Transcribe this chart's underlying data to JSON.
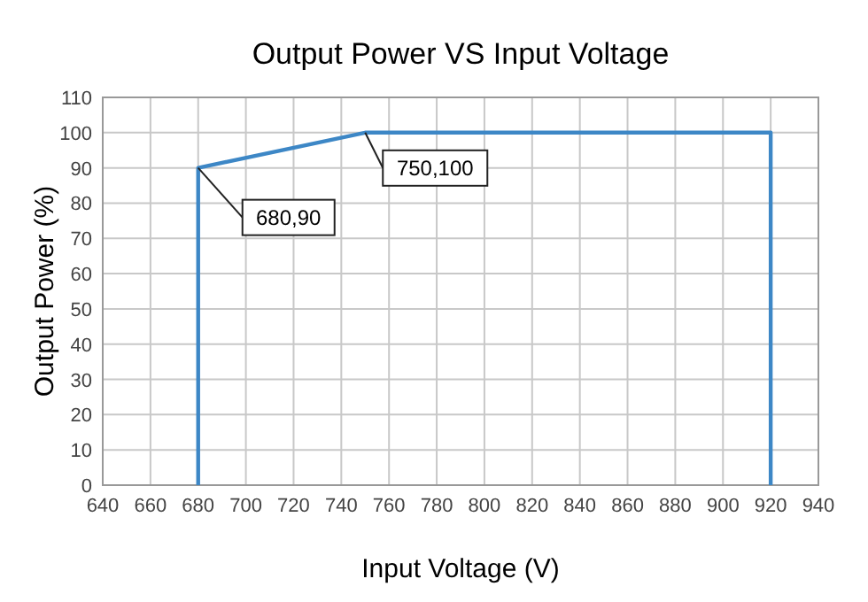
{
  "chart_data": {
    "type": "line",
    "title": "Output Power VS Input Voltage",
    "xlabel": "Input Voltage (V)",
    "ylabel": "Output Power (%)",
    "x": [
      680,
      680,
      750,
      920,
      920
    ],
    "series": [
      {
        "color": "#3d87c6",
        "values": [
          0,
          90,
          100,
          100,
          0
        ]
      }
    ],
    "xlim": [
      640,
      940
    ],
    "xticks": [
      640,
      660,
      680,
      700,
      720,
      740,
      760,
      780,
      800,
      820,
      840,
      860,
      880,
      900,
      920,
      940
    ],
    "ylim": [
      0,
      110
    ],
    "yticks": [
      0,
      10,
      20,
      30,
      40,
      50,
      60,
      70,
      80,
      90,
      100,
      110
    ],
    "grid": true,
    "marker": "none",
    "line_style": "solid",
    "annotations": [
      {
        "text": "680,90",
        "x": 680,
        "y": 90
      },
      {
        "text": "750,100",
        "x": 750,
        "y": 100
      }
    ]
  }
}
